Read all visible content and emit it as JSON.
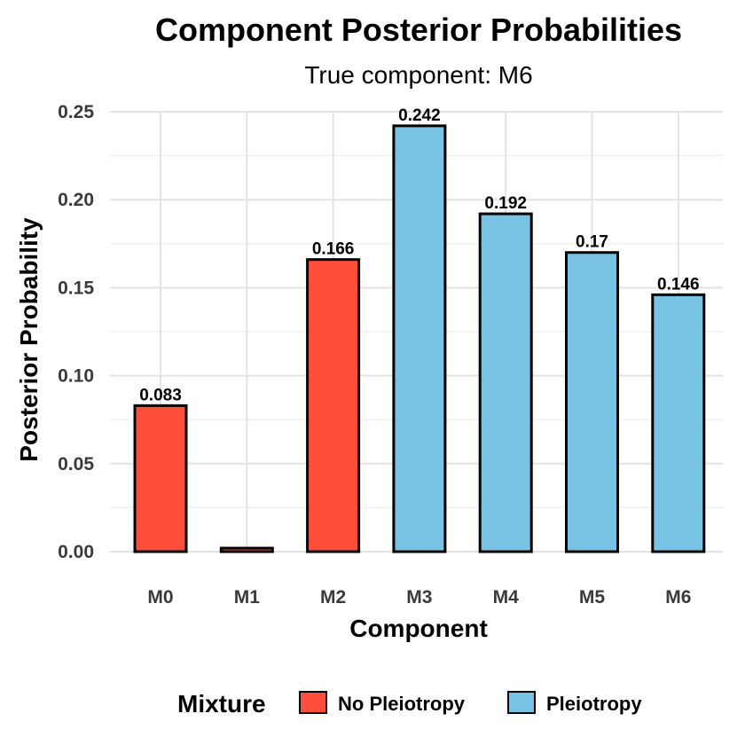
{
  "chart_data": {
    "type": "bar",
    "title": "Component Posterior Probabilities",
    "subtitle": "True component: M6",
    "xlabel": "Component",
    "ylabel": "Posterior Probability",
    "categories": [
      "M0",
      "M1",
      "M2",
      "M3",
      "M4",
      "M5",
      "M6"
    ],
    "values": [
      0.083,
      0.002,
      0.166,
      0.242,
      0.192,
      0.17,
      0.146
    ],
    "labels": [
      "0.083",
      "",
      "0.166",
      "0.242",
      "0.192",
      "0.17",
      "0.146"
    ],
    "groups": [
      "No Pleiotropy",
      "No Pleiotropy",
      "No Pleiotropy",
      "Pleiotropy",
      "Pleiotropy",
      "Pleiotropy",
      "Pleiotropy"
    ],
    "ylim": [
      0,
      0.25
    ],
    "yticks": [
      "0.00",
      "0.05",
      "0.10",
      "0.15",
      "0.20",
      "0.25"
    ],
    "grid": true,
    "legend": {
      "title": "Mixture",
      "position": "bottom",
      "entries": [
        {
          "label": "No Pleiotropy",
          "color": "#FF4F3B"
        },
        {
          "label": "Pleiotropy",
          "color": "#78C2E4"
        }
      ]
    },
    "colors": {
      "No Pleiotropy": "#FF4F3B",
      "Pleiotropy": "#78C2E4",
      "outline": "#000000"
    }
  }
}
